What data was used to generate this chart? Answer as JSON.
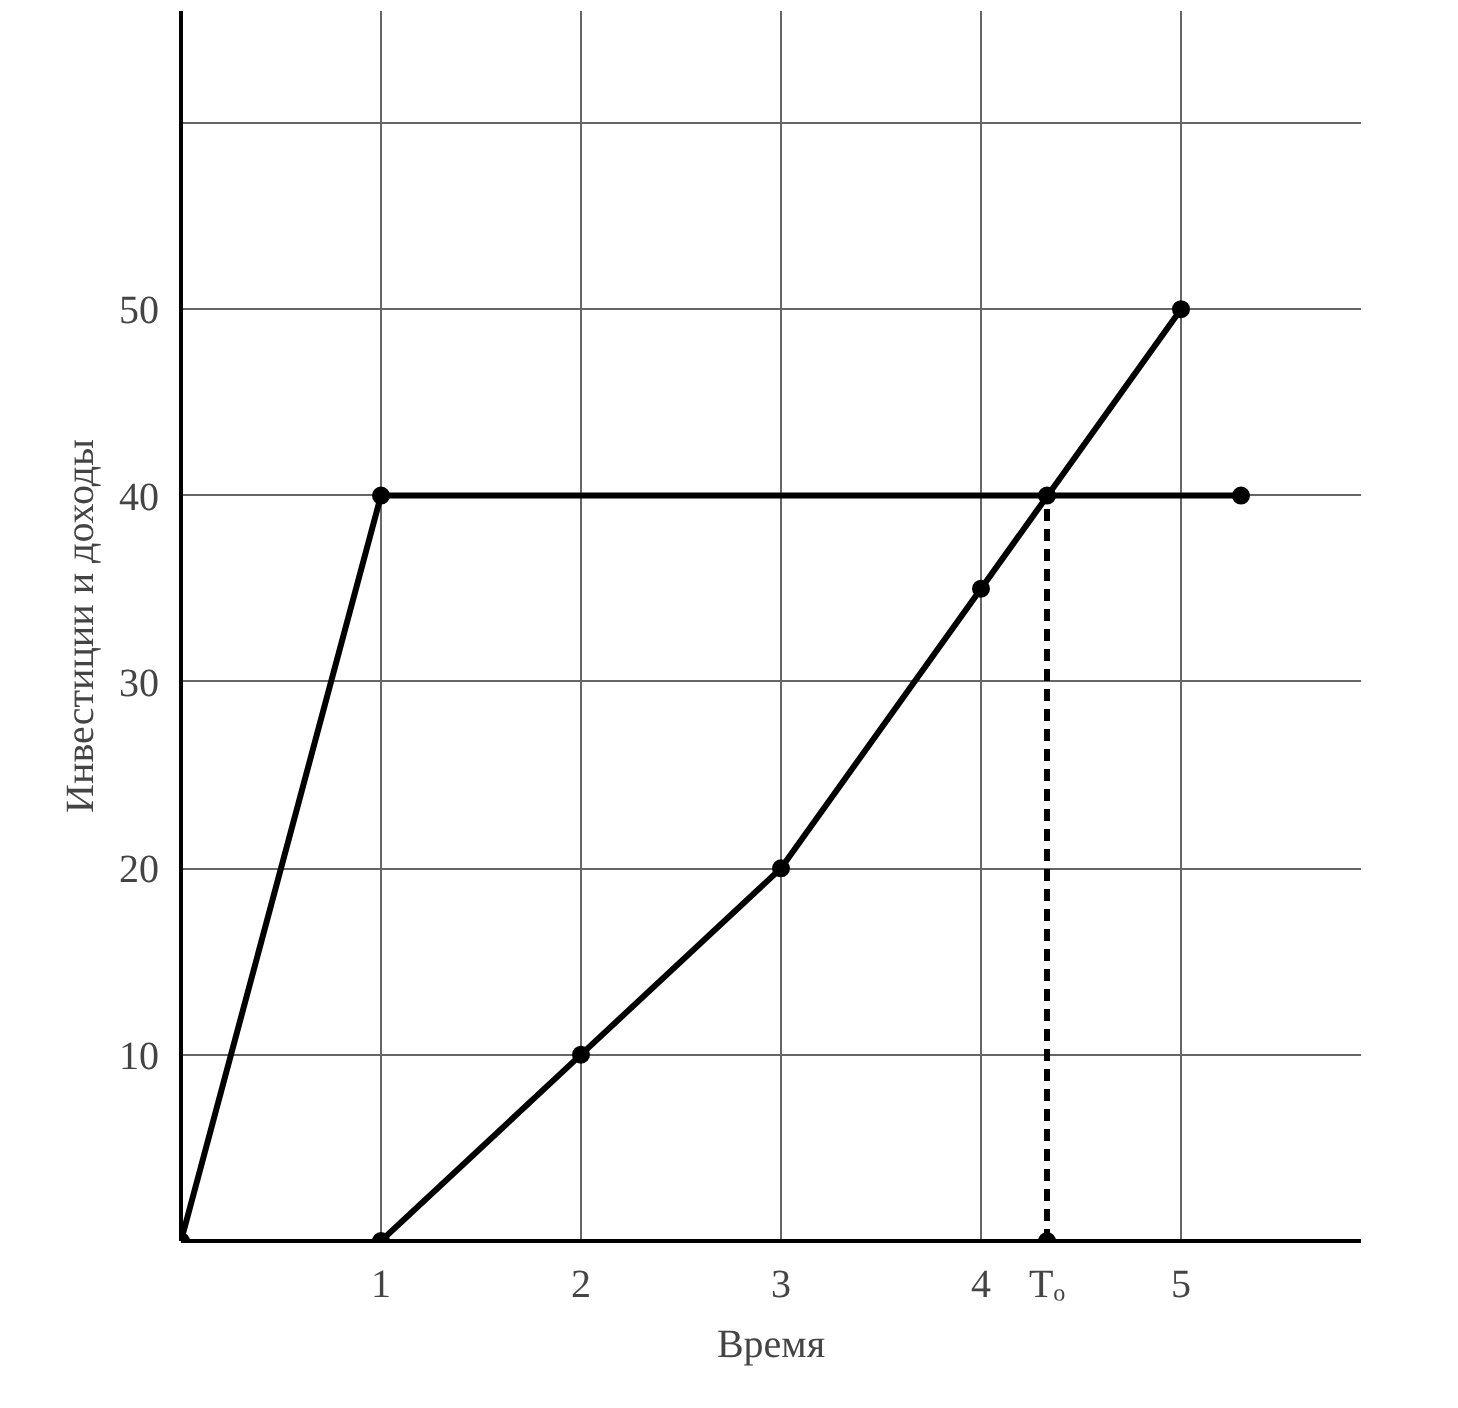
{
  "chart_data": {
    "type": "line",
    "xlabel": "Время",
    "ylabel": "Инвестиции и доходы",
    "x": [
      0,
      1,
      5.3
    ],
    "series": [
      {
        "color": "#000000",
        "values": [
          0,
          40,
          40
        ]
      },
      {
        "color": "#000000",
        "x": [
          1,
          2,
          3,
          4,
          5
        ],
        "values": [
          0,
          10,
          20,
          35,
          50
        ]
      },
      {
        "color": "#000000",
        "x": [
          4.33,
          4.33
        ],
        "values": [
          0,
          40
        ],
        "line_style": "dashed"
      }
    ],
    "xlim": [
      0,
      5.9
    ],
    "ylim": [
      0,
      66
    ],
    "xticks": [
      1,
      2,
      3,
      4,
      {
        "value": 4.33,
        "label": "Tₒ"
      },
      5
    ],
    "yticks": [
      10,
      20,
      30,
      40,
      50,
      {
        "value": 60,
        "label": null
      }
    ],
    "grid": true,
    "line_style": "solid",
    "marker": "circle"
  }
}
